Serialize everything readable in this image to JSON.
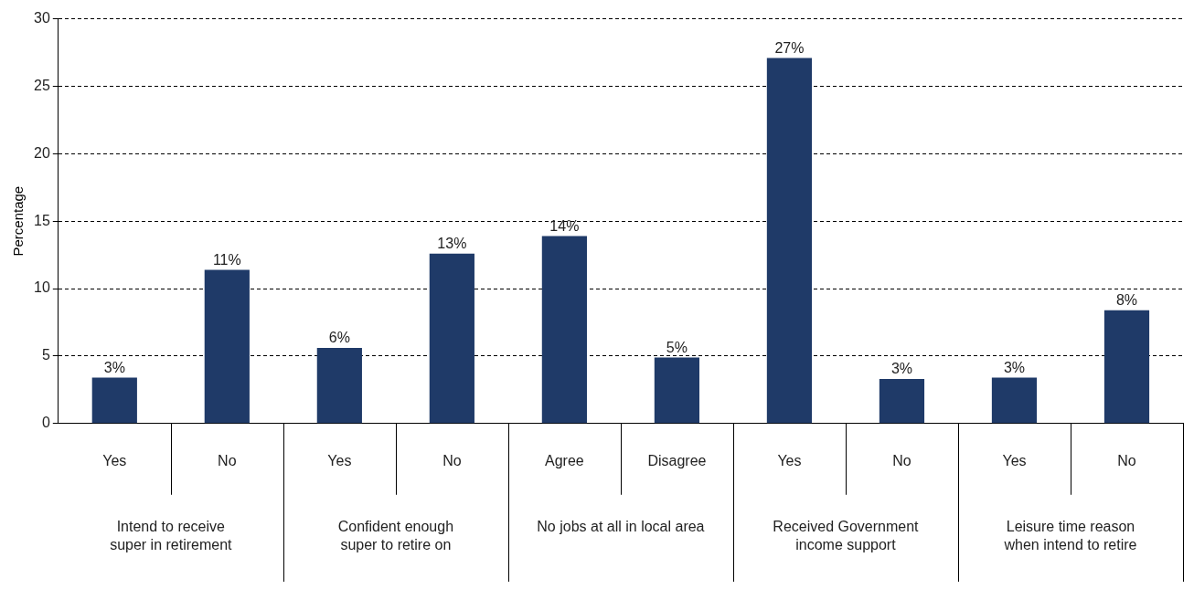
{
  "chart_data": {
    "type": "bar",
    "ylabel": "Percentage",
    "categories": [
      "Yes",
      "No",
      "Yes",
      "No",
      "Agree",
      "Disagree",
      "Yes",
      "No",
      "Yes",
      "No"
    ],
    "values": [
      3.4,
      11.4,
      5.6,
      12.6,
      13.9,
      4.9,
      27.1,
      3.3,
      3.4,
      8.4
    ],
    "value_labels": [
      "3%",
      "11%",
      "6%",
      "13%",
      "14%",
      "5%",
      "27%",
      "3%",
      "3%",
      "8%"
    ],
    "color": "#1f3a68",
    "ylim": [
      0,
      30
    ],
    "yticks": [
      0,
      5,
      10,
      15,
      20,
      25,
      30
    ],
    "grid": "y",
    "legend": false,
    "annotations": [
      "Intend to receive\nsuper in retirement",
      "Confident enough\nsuper to retire on",
      "No jobs at all in local area",
      "Received Government\nincome support",
      "Leisure time reason\nwhen intend to retire"
    ]
  }
}
